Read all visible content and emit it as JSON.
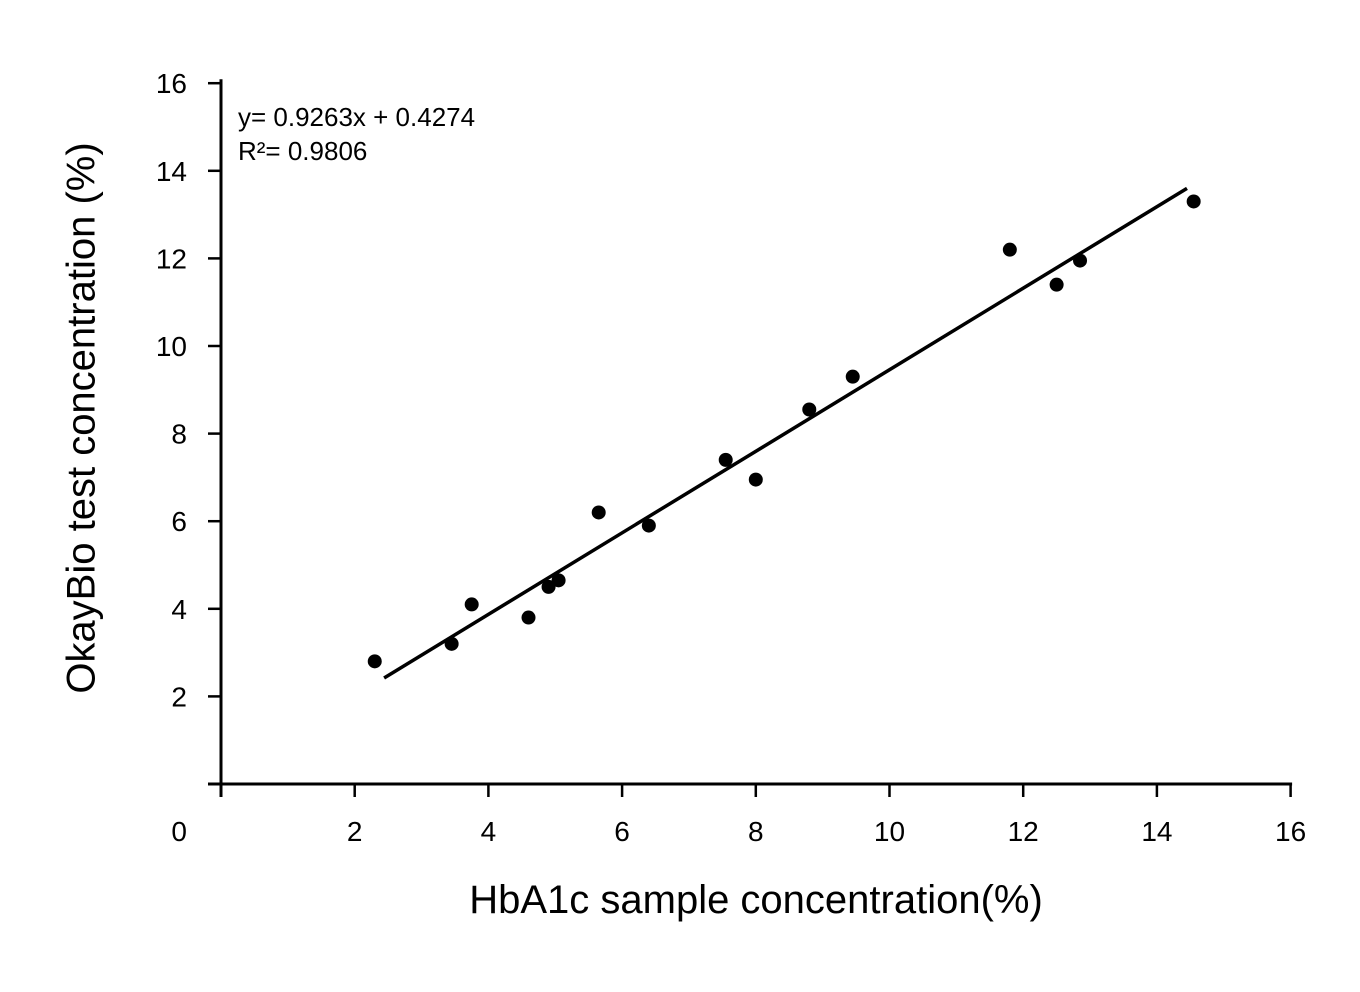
{
  "chart_data": {
    "type": "scatter",
    "title": "",
    "xlabel": "HbA1c sample concentration(%)",
    "ylabel": "OkayBio test concentration (%)",
    "xlim": [
      0,
      16
    ],
    "ylim": [
      0,
      16
    ],
    "xticks": [
      2,
      4,
      6,
      8,
      10,
      12,
      14,
      16
    ],
    "yticks": [
      2,
      4,
      6,
      8,
      10,
      12,
      14,
      16
    ],
    "origin_label": "0",
    "grid": false,
    "legend": "none",
    "points": [
      [
        2.3,
        2.8
      ],
      [
        3.45,
        3.2
      ],
      [
        3.75,
        4.1
      ],
      [
        4.6,
        3.8
      ],
      [
        4.9,
        4.5
      ],
      [
        5.05,
        4.65
      ],
      [
        5.65,
        6.2
      ],
      [
        6.4,
        5.9
      ],
      [
        7.55,
        7.4
      ],
      [
        8.0,
        6.95
      ],
      [
        8.8,
        8.55
      ],
      [
        9.45,
        9.3
      ],
      [
        11.8,
        12.2
      ],
      [
        12.5,
        11.4
      ],
      [
        12.85,
        11.95
      ],
      [
        14.55,
        13.3
      ]
    ],
    "trendline": {
      "slope": 0.9263,
      "intercept": 0.4274,
      "r2": 0.9806,
      "equation_label": "y= 0.9263x + 0.4274",
      "r_squared_label": "R²= 0.9806",
      "segment": {
        "x1": 2.44,
        "y1": 2.42,
        "x2": 14.45,
        "y2": 13.6
      }
    },
    "colors": {
      "points": "#000000",
      "trendline": "#000000",
      "axis": "#000000",
      "text": "#000000",
      "background": "#ffffff"
    }
  }
}
